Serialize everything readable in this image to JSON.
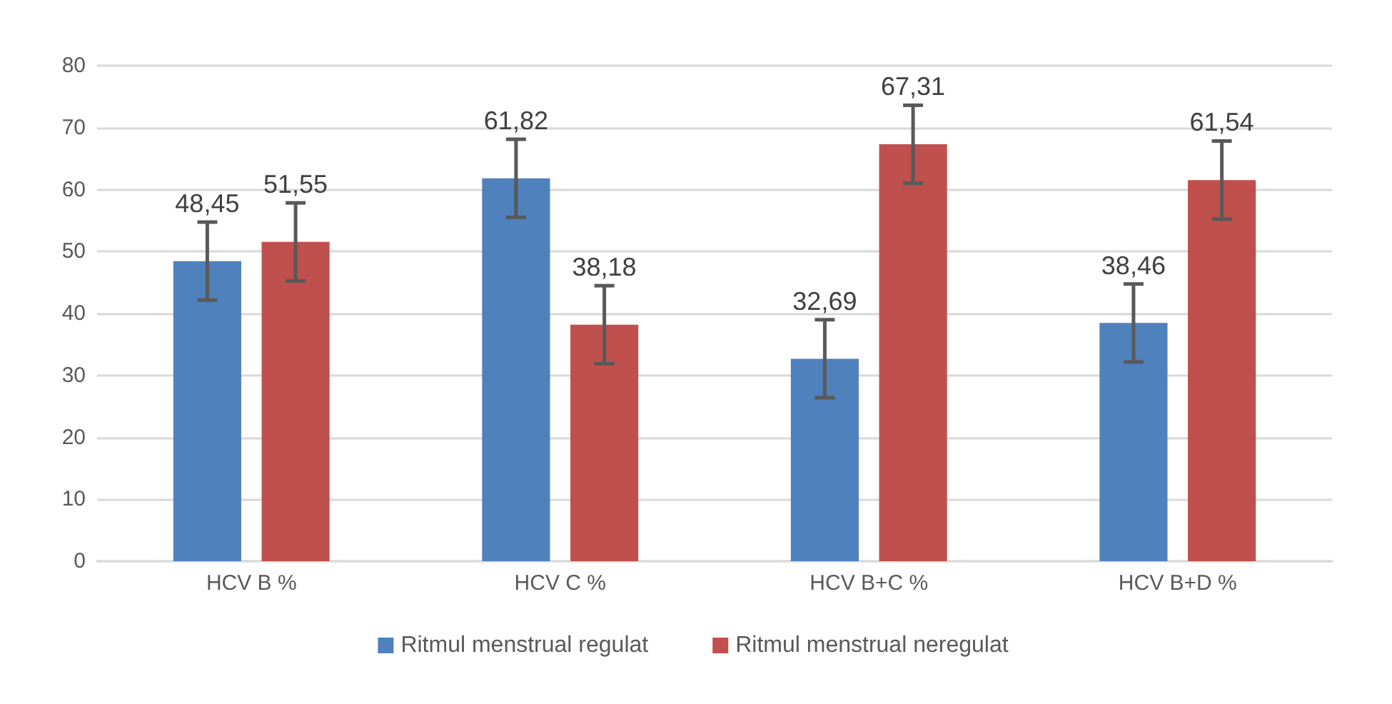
{
  "chart_data": {
    "type": "bar",
    "categories": [
      "HCV B %",
      "HCV C %",
      "HCV B+C %",
      "HCV B+D %"
    ],
    "series": [
      {
        "name": "Ritmul menstrual regulat",
        "color": "#4f81bd",
        "values": [
          48.45,
          61.82,
          32.69,
          38.46
        ],
        "value_labels": [
          "48,45",
          "61,82",
          "32,69",
          "38,46"
        ],
        "errors": [
          6.3,
          6.3,
          6.3,
          6.3
        ]
      },
      {
        "name": "Ritmul menstrual neregulat",
        "color": "#c0504d",
        "values": [
          51.55,
          38.18,
          67.31,
          61.54
        ],
        "value_labels": [
          "51,55",
          "38,18",
          "67,31",
          "61,54"
        ],
        "errors": [
          6.3,
          6.3,
          6.3,
          6.3
        ]
      }
    ],
    "ylim": [
      0,
      80
    ],
    "yticks": [
      0,
      10,
      20,
      30,
      40,
      50,
      60,
      70,
      80
    ],
    "grid": "y",
    "legend": "bottom"
  }
}
